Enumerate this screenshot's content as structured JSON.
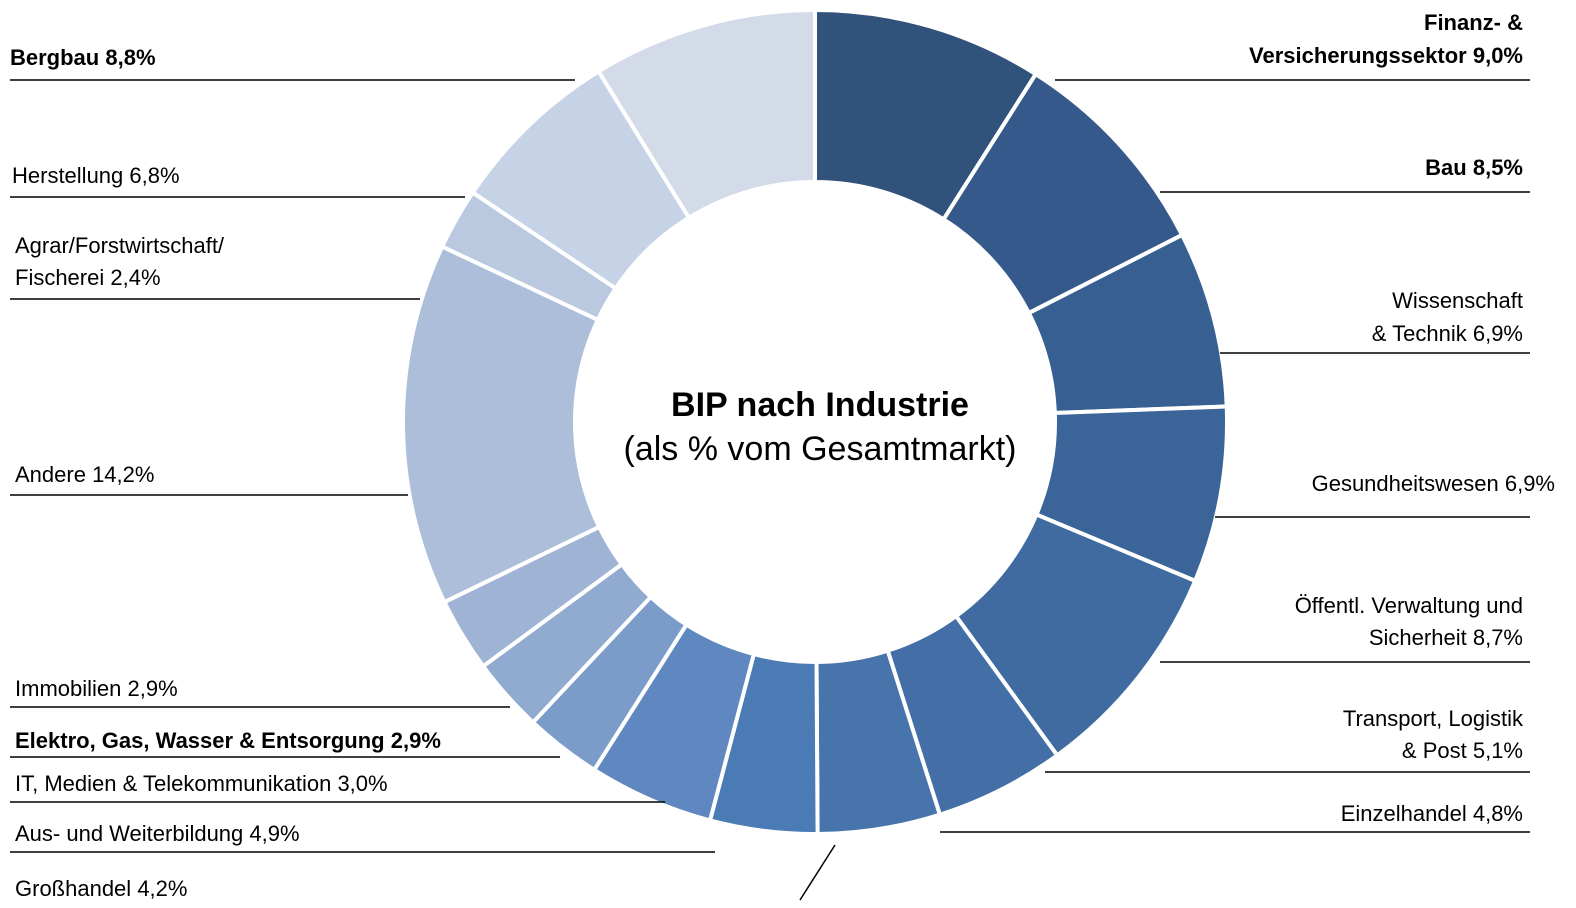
{
  "chart_data": {
    "type": "donut",
    "title": "BIP nach Industrie",
    "subtitle": "(als % vom Gesamtmarkt)",
    "categories": [
      [
        "Finanz- &",
        "Versicherungssektor"
      ],
      [
        "Bau"
      ],
      [
        "Wissenschaft",
        "& Technik"
      ],
      [
        "Gesundheitswesen"
      ],
      [
        "Öffentl. Verwaltung und",
        "Sicherheit"
      ],
      [
        "Transport, Logistik",
        "& Post"
      ],
      [
        "Einzelhandel"
      ],
      [
        "Großhandel"
      ],
      [
        "Aus- und Weiterbildung"
      ],
      [
        "IT, Medien & Telekommunikation"
      ],
      [
        "Elektro, Gas, Wasser & Entsorgung"
      ],
      [
        "Immobilien"
      ],
      [
        "Andere "
      ],
      [
        "Agrar/Forstwirtschaft/",
        "Fischerei"
      ],
      [
        "Herstellung"
      ],
      [
        "Bergbau"
      ]
    ],
    "values": [
      9.0,
      8.5,
      6.9,
      6.9,
      8.7,
      5.1,
      4.8,
      4.2,
      4.9,
      3.0,
      2.9,
      2.9,
      14.2,
      2.4,
      6.8,
      8.8
    ],
    "value_labels": [
      "9,0%",
      "8,5%",
      "6,9%",
      "6,9%",
      "8,7%",
      "5,1%",
      "4,8%",
      "4,2%",
      "4,9%",
      "3,0%",
      "2,9%",
      "2,9%",
      "14,2%",
      "2,4%",
      "6,8%",
      "8,8%"
    ],
    "colors": [
      "#31527a",
      "#34598a",
      "#385f92",
      "#3b6598",
      "#3f6ba0",
      "#436fa6",
      "#4674ab",
      "#4a7bb5",
      "#5f88c0",
      "#7b9cc9",
      "#90aad0",
      "#9fb4d5",
      "#adbedb",
      "#bac8e0",
      "#c6d2e5",
      "#d3dae8"
    ]
  }
}
